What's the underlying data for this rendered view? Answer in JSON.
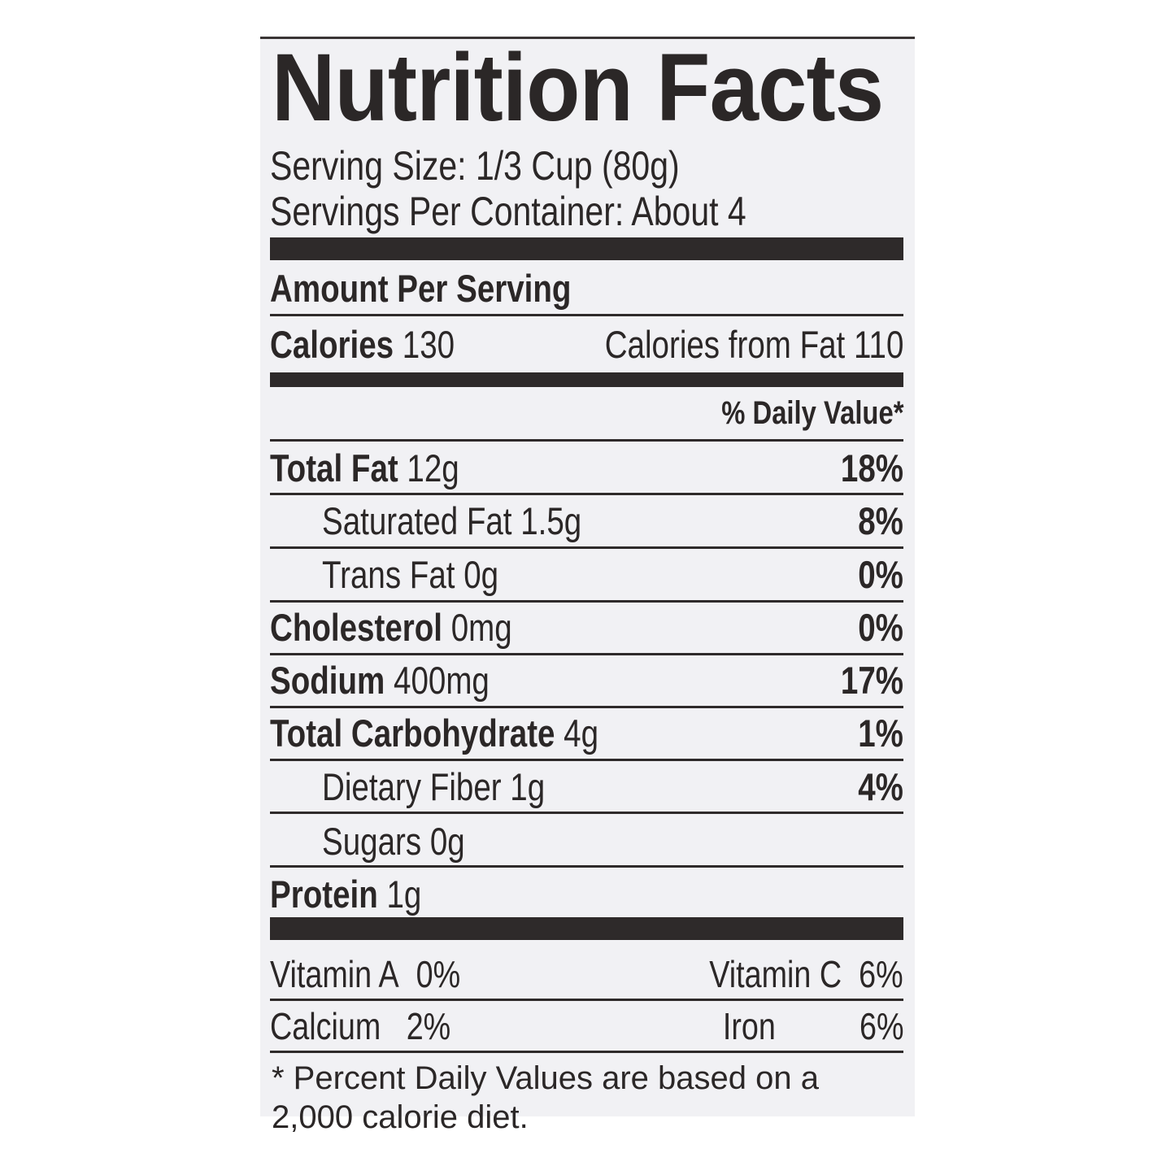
{
  "title": "Nutrition Facts",
  "serving_size": "Serving Size: 1/3 Cup (80g)",
  "servings_per_container": "Servings Per Container: About 4",
  "amount_per_serving": "Amount Per Serving",
  "calories": {
    "label": "Calories",
    "value": "130",
    "from_fat_label": "Calories from Fat",
    "from_fat_value": "110"
  },
  "daily_value_header": "% Daily Value*",
  "nutrients": [
    {
      "name": "Total Fat",
      "amount": "12g",
      "dv": "18%"
    },
    {
      "name": "Saturated Fat",
      "amount": "1.5g",
      "dv": "8%"
    },
    {
      "name": "Trans Fat",
      "amount": "0g",
      "dv": "0%"
    },
    {
      "name": "Cholesterol",
      "amount": "0mg",
      "dv": "0%"
    },
    {
      "name": "Sodium",
      "amount": "400mg",
      "dv": "17%"
    },
    {
      "name": "Total Carbohydrate",
      "amount": "4g",
      "dv": "1%"
    },
    {
      "name": "Dietary Fiber",
      "amount": "1g",
      "dv": "4%"
    },
    {
      "name": "Sugars",
      "amount": "0g",
      "dv": ""
    },
    {
      "name": "Protein",
      "amount": "1g",
      "dv": ""
    }
  ],
  "vitamins": [
    {
      "name": "Vitamin A",
      "dv": "0%"
    },
    {
      "name": "Vitamin C",
      "dv": "6%"
    },
    {
      "name": "Calcium",
      "dv": "2%"
    },
    {
      "name": "Iron",
      "dv": "6%"
    }
  ],
  "footnote_line1": "* Percent Daily Values are based on a",
  "footnote_line2": "2,000 calorie diet."
}
